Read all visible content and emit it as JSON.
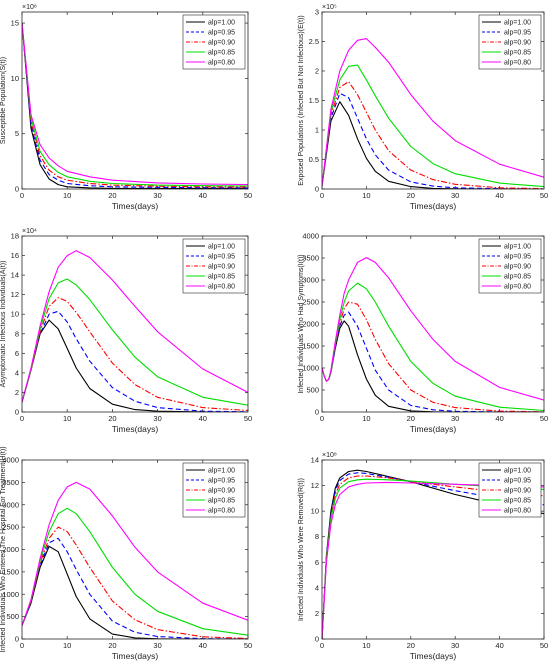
{
  "style": {
    "series_colors": [
      "#000000",
      "#0000ff",
      "#ff0000",
      "#00dd00",
      "#ff00ff"
    ],
    "series_dash": [
      "solid",
      "dashed",
      "dashdot",
      "solid",
      "solid"
    ]
  },
  "chart_data": [
    {
      "type": "line",
      "xlabel": "Times(days)",
      "ylabel": "Susceptible Population(S(t))",
      "exponent_label": "×10⁸",
      "xlim": [
        0,
        50
      ],
      "ylim": [
        0,
        16
      ],
      "xticks": [
        "0",
        "10",
        "20",
        "30",
        "40",
        "50"
      ],
      "yticks": [
        "0",
        "5",
        "10",
        "15"
      ],
      "legend_loc": "top-right",
      "x": [
        0,
        2,
        4,
        6,
        8,
        10,
        15,
        20,
        30,
        40,
        50
      ],
      "series": [
        {
          "name": "alp=1.00",
          "values": [
            15,
            5.5,
            2.2,
            0.9,
            0.4,
            0.2,
            0.1,
            0.05,
            0.05,
            0.05,
            0.05
          ]
        },
        {
          "name": "alp=0.95",
          "values": [
            15,
            5.8,
            2.6,
            1.3,
            0.8,
            0.5,
            0.3,
            0.2,
            0.15,
            0.12,
            0.1
          ]
        },
        {
          "name": "alp=0.90",
          "values": [
            15,
            6.1,
            3.0,
            1.7,
            1.1,
            0.8,
            0.5,
            0.35,
            0.25,
            0.2,
            0.18
          ]
        },
        {
          "name": "alp=0.85",
          "values": [
            15,
            6.4,
            3.4,
            2.2,
            1.5,
            1.1,
            0.7,
            0.5,
            0.35,
            0.3,
            0.27
          ]
        },
        {
          "name": "alp=0.80",
          "values": [
            15,
            6.7,
            4.0,
            2.8,
            2.1,
            1.6,
            1.1,
            0.8,
            0.55,
            0.45,
            0.4
          ]
        }
      ]
    },
    {
      "type": "line",
      "xlabel": "Times(days)",
      "ylabel": "Exposed Populations (Infected But Not Infectious)(E(t))",
      "exponent_label": "×10⁵",
      "xlim": [
        0,
        50
      ],
      "ylim": [
        0,
        3
      ],
      "xticks": [
        "0",
        "10",
        "20",
        "30",
        "40",
        "50"
      ],
      "yticks": [
        "0",
        "0.5",
        "1",
        "1.5",
        "2",
        "2.5",
        "3"
      ],
      "legend_loc": "top-right",
      "x": [
        0,
        2,
        4,
        6,
        8,
        10,
        12,
        15,
        20,
        25,
        30,
        40,
        50
      ],
      "series": [
        {
          "name": "alp=1.00",
          "values": [
            0.05,
            1.15,
            1.48,
            1.25,
            0.85,
            0.52,
            0.3,
            0.13,
            0.04,
            0.01,
            0.003,
            0.0,
            0.0
          ]
        },
        {
          "name": "alp=0.95",
          "values": [
            0.05,
            1.2,
            1.62,
            1.55,
            1.2,
            0.85,
            0.58,
            0.32,
            0.12,
            0.05,
            0.02,
            0.005,
            0.0
          ]
        },
        {
          "name": "alp=0.90",
          "values": [
            0.05,
            1.25,
            1.72,
            1.82,
            1.6,
            1.3,
            1.0,
            0.65,
            0.32,
            0.16,
            0.08,
            0.02,
            0.005
          ]
        },
        {
          "name": "alp=0.85",
          "values": [
            0.05,
            1.3,
            1.85,
            2.08,
            2.1,
            1.85,
            1.58,
            1.2,
            0.72,
            0.43,
            0.26,
            0.1,
            0.04
          ]
        },
        {
          "name": "alp=0.80",
          "values": [
            0.05,
            1.35,
            2.0,
            2.35,
            2.52,
            2.55,
            2.4,
            2.15,
            1.6,
            1.15,
            0.82,
            0.42,
            0.2
          ]
        }
      ]
    },
    {
      "type": "line",
      "xlabel": "Times(days)",
      "ylabel": "Asymptomatic Infectious Individuals(A(t))",
      "exponent_label": "×10⁴",
      "xlim": [
        0,
        50
      ],
      "ylim": [
        0,
        18
      ],
      "xticks": [
        "0",
        "10",
        "20",
        "30",
        "40",
        "50"
      ],
      "yticks": [
        "0",
        "2",
        "4",
        "6",
        "8",
        "10",
        "12",
        "14",
        "16",
        "18"
      ],
      "legend_loc": "top-right",
      "x": [
        0,
        2,
        4,
        6,
        8,
        10,
        12,
        15,
        20,
        25,
        30,
        40,
        50
      ],
      "series": [
        {
          "name": "alp=1.00",
          "values": [
            1.0,
            4.3,
            8.0,
            9.4,
            8.5,
            6.5,
            4.5,
            2.4,
            0.8,
            0.25,
            0.08,
            0.01,
            0.0
          ]
        },
        {
          "name": "alp=0.95",
          "values": [
            1.0,
            4.3,
            8.0,
            10.0,
            10.3,
            9.2,
            7.5,
            5.2,
            2.5,
            1.1,
            0.45,
            0.08,
            0.02
          ]
        },
        {
          "name": "alp=0.90",
          "values": [
            1.0,
            4.3,
            8.2,
            10.8,
            11.7,
            11.3,
            10.2,
            8.2,
            5.0,
            2.8,
            1.5,
            0.45,
            0.15
          ]
        },
        {
          "name": "alp=0.85",
          "values": [
            1.0,
            4.4,
            8.5,
            11.6,
            13.2,
            13.6,
            13.0,
            11.5,
            8.4,
            5.6,
            3.6,
            1.5,
            0.7
          ]
        },
        {
          "name": "alp=0.80",
          "values": [
            1.0,
            4.5,
            8.8,
            12.3,
            14.8,
            16.0,
            16.5,
            15.8,
            13.5,
            10.8,
            8.2,
            4.4,
            2.0
          ]
        }
      ]
    },
    {
      "type": "line",
      "xlabel": "Times(days)",
      "ylabel": "Infected Individuals Who Had Symptoms(I(t))",
      "exponent_label": "",
      "xlim": [
        0,
        50
      ],
      "ylim": [
        0,
        4000
      ],
      "xticks": [
        "0",
        "10",
        "20",
        "30",
        "40",
        "50"
      ],
      "yticks": [
        "0",
        "500",
        "1000",
        "1500",
        "2000",
        "2500",
        "3000",
        "3500",
        "4000"
      ],
      "legend_loc": "top-right",
      "x": [
        0,
        0.5,
        1,
        1.5,
        2,
        3,
        4,
        5,
        6,
        8,
        10,
        12,
        15,
        20,
        25,
        30,
        40,
        50
      ],
      "series": [
        {
          "name": "alp=1.00",
          "values": [
            1000,
            820,
            700,
            740,
            900,
            1450,
            1900,
            2070,
            1950,
            1300,
            750,
            380,
            130,
            25,
            5,
            1,
            0,
            0
          ]
        },
        {
          "name": "alp=0.95",
          "values": [
            1000,
            820,
            700,
            740,
            900,
            1450,
            1950,
            2200,
            2270,
            1950,
            1450,
            950,
            500,
            150,
            50,
            15,
            2,
            0
          ]
        },
        {
          "name": "alp=0.90",
          "values": [
            1000,
            820,
            700,
            740,
            900,
            1500,
            2000,
            2350,
            2500,
            2450,
            2100,
            1650,
            1100,
            500,
            220,
            100,
            20,
            5
          ]
        },
        {
          "name": "alp=0.85",
          "values": [
            1000,
            820,
            700,
            740,
            920,
            1550,
            2100,
            2500,
            2750,
            2930,
            2800,
            2500,
            1950,
            1150,
            650,
            360,
            110,
            35
          ]
        },
        {
          "name": "alp=0.80",
          "values": [
            1000,
            820,
            700,
            740,
            950,
            1600,
            2200,
            2700,
            3000,
            3400,
            3510,
            3400,
            3050,
            2300,
            1650,
            1150,
            560,
            270
          ]
        }
      ]
    },
    {
      "type": "line",
      "xlabel": "Times(days)",
      "ylabel": "Infected Individuals Who Entered The Hospital For Treatment(H(t))",
      "exponent_label": "",
      "xlim": [
        0,
        50
      ],
      "ylim": [
        0,
        4000
      ],
      "xticks": [
        "0",
        "10",
        "20",
        "30",
        "40",
        "50"
      ],
      "yticks": [
        "0",
        "500",
        "1000",
        "1500",
        "2000",
        "2500",
        "3000",
        "3500",
        "4000"
      ],
      "legend_loc": "top-right",
      "x": [
        0,
        2,
        4,
        6,
        8,
        10,
        12,
        15,
        20,
        25,
        30,
        40,
        50
      ],
      "series": [
        {
          "name": "alp=1.00",
          "values": [
            300,
            800,
            1600,
            2070,
            1950,
            1450,
            950,
            450,
            110,
            25,
            5,
            0,
            0
          ]
        },
        {
          "name": "alp=0.95",
          "values": [
            300,
            820,
            1650,
            2150,
            2250,
            1950,
            1550,
            1000,
            400,
            150,
            55,
            7,
            1
          ]
        },
        {
          "name": "alp=0.90",
          "values": [
            300,
            840,
            1700,
            2250,
            2500,
            2400,
            2100,
            1600,
            850,
            430,
            210,
            50,
            12
          ]
        },
        {
          "name": "alp=0.85",
          "values": [
            300,
            860,
            1750,
            2400,
            2800,
            2920,
            2800,
            2400,
            1600,
            1000,
            620,
            230,
            85
          ]
        },
        {
          "name": "alp=0.80",
          "values": [
            300,
            880,
            1800,
            2550,
            3100,
            3400,
            3500,
            3350,
            2750,
            2050,
            1500,
            800,
            420
          ]
        }
      ]
    },
    {
      "type": "line",
      "xlabel": "Times(days)",
      "ylabel": "Infected Individuals Who Were Removed(R(t))",
      "exponent_label": "×10⁸",
      "xlim": [
        0,
        50
      ],
      "ylim": [
        0,
        14
      ],
      "xticks": [
        "0",
        "10",
        "20",
        "30",
        "40",
        "50"
      ],
      "yticks": [
        "0",
        "2",
        "4",
        "6",
        "8",
        "10",
        "12",
        "14"
      ],
      "legend_loc": "top-right",
      "x": [
        0,
        1,
        2,
        3,
        4,
        6,
        8,
        10,
        15,
        20,
        30,
        40,
        50
      ],
      "series": [
        {
          "name": "alp=1.00",
          "values": [
            0,
            6.5,
            10.0,
            11.8,
            12.6,
            13.1,
            13.2,
            13.1,
            12.7,
            12.3,
            11.3,
            10.5,
            9.8
          ]
        },
        {
          "name": "alp=0.95",
          "values": [
            0,
            6.4,
            9.8,
            11.6,
            12.4,
            12.9,
            13.0,
            12.95,
            12.65,
            12.3,
            11.6,
            11.0,
            10.5
          ]
        },
        {
          "name": "alp=0.90",
          "values": [
            0,
            6.3,
            9.6,
            11.3,
            12.1,
            12.6,
            12.75,
            12.75,
            12.6,
            12.3,
            11.9,
            11.5,
            11.2
          ]
        },
        {
          "name": "alp=0.85",
          "values": [
            0,
            6.2,
            9.4,
            11.0,
            11.8,
            12.3,
            12.45,
            12.5,
            12.45,
            12.35,
            12.1,
            11.9,
            11.7
          ]
        },
        {
          "name": "alp=0.80",
          "values": [
            0,
            6.0,
            9.0,
            10.5,
            11.3,
            11.9,
            12.1,
            12.2,
            12.25,
            12.2,
            12.1,
            12.0,
            11.9
          ]
        }
      ]
    }
  ]
}
